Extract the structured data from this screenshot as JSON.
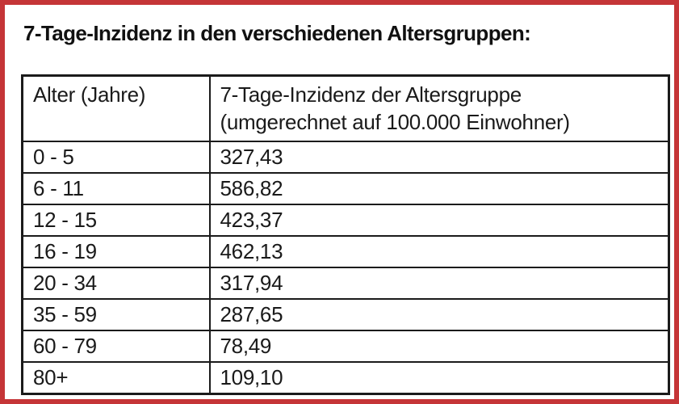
{
  "title": "7-Tage-Inzidenz in den verschiedenen Altersgruppen:",
  "colors": {
    "frame_red": "#c53537",
    "table_border_black": "#1b1b1b",
    "text": "#1a1a1a",
    "background": "#ffffff"
  },
  "table": {
    "headers": {
      "age_column": "Alter (Jahre)",
      "incidence_column_line1": "7-Tage-Inzidenz der Altersgruppe",
      "incidence_column_line2": "(umgerechnet auf 100.000 Einwohner)"
    },
    "rows": [
      [
        "0 - 5",
        "327,43"
      ],
      [
        "6 - 11",
        "586,82"
      ],
      [
        "12 - 15",
        "423,37"
      ],
      [
        "16 - 19",
        "462,13"
      ],
      [
        "20 - 34",
        "317,94"
      ],
      [
        "35 - 59",
        "287,65"
      ],
      [
        "60 - 79",
        "78,49"
      ],
      [
        "80+",
        "109,10"
      ]
    ]
  }
}
